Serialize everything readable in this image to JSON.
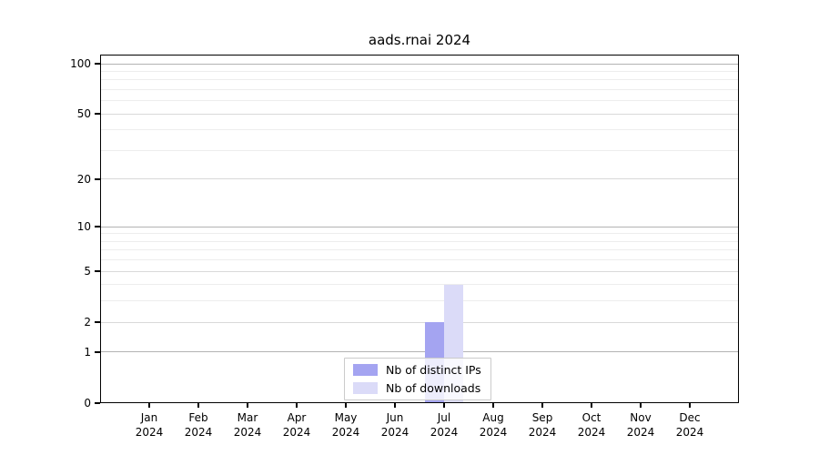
{
  "title": "aads.rnai 2024",
  "chart_data": {
    "type": "bar",
    "title": "aads.rnai 2024",
    "year": "2024",
    "categories": [
      "Jan",
      "Feb",
      "Mar",
      "Apr",
      "May",
      "Jun",
      "Jul",
      "Aug",
      "Sep",
      "Oct",
      "Nov",
      "Dec"
    ],
    "series": [
      {
        "name": "Nb of distinct IPs",
        "color": "#a4a4f1",
        "values": [
          0,
          0,
          0,
          0,
          0,
          0,
          2,
          0,
          0,
          0,
          0,
          0
        ]
      },
      {
        "name": "Nb of downloads",
        "color": "#dbdbf8",
        "values": [
          0,
          0,
          0,
          0,
          0,
          0,
          4,
          0,
          0,
          0,
          0,
          0
        ]
      }
    ],
    "yscale": "log1p",
    "ylim": [
      0,
      100
    ],
    "yticks": [
      0,
      1,
      2,
      5,
      10,
      20,
      50,
      100
    ],
    "minor_yticks": [
      3,
      4,
      6,
      7,
      8,
      9,
      30,
      40,
      60,
      70,
      80,
      90
    ],
    "grid": true,
    "legend_position": "bottom-center"
  },
  "colors": {
    "background": "#ffffff",
    "spine": "#000000",
    "grid_major": "#b3b3b3",
    "grid_mid": "#d9d9d9",
    "grid_minor": "#ededed",
    "legend_border": "#cbcbcb",
    "text": "#000000"
  }
}
